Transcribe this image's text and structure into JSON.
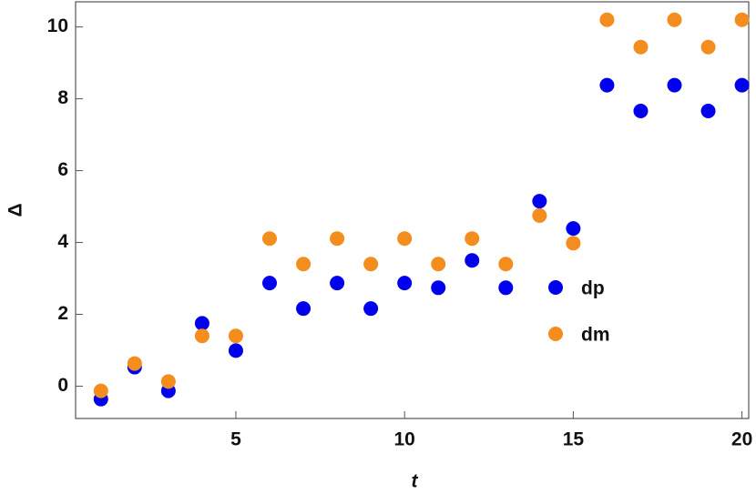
{
  "chart_data": {
    "type": "scatter",
    "x_label": "t",
    "y_label": "Δ",
    "x": [
      1,
      2,
      3,
      4,
      5,
      6,
      7,
      8,
      9,
      10,
      11,
      12,
      13,
      14,
      15,
      16,
      17,
      18,
      19,
      20
    ],
    "series": [
      {
        "name": "dp",
        "color": "#0000ee",
        "values": [
          -0.36,
          0.53,
          -0.13,
          1.75,
          0.99,
          2.87,
          2.16,
          2.87,
          2.16,
          2.87,
          2.74,
          3.5,
          2.74,
          5.15,
          4.39,
          8.38,
          7.66,
          8.38,
          7.66,
          8.38
        ]
      },
      {
        "name": "dm",
        "color": "#f28d1e",
        "values": [
          -0.13,
          0.63,
          0.13,
          1.4,
          1.4,
          4.11,
          3.4,
          4.11,
          3.4,
          4.11,
          3.4,
          4.11,
          3.4,
          4.75,
          3.98,
          10.2,
          9.44,
          10.2,
          9.44,
          10.2
        ]
      }
    ],
    "xlim": [
      0.25,
      20.2
    ],
    "ylim": [
      -0.9,
      10.7
    ],
    "xticks": [
      5,
      10,
      15,
      20
    ],
    "yticks": [
      0,
      2,
      4,
      6,
      8,
      10
    ],
    "legend": "right"
  }
}
